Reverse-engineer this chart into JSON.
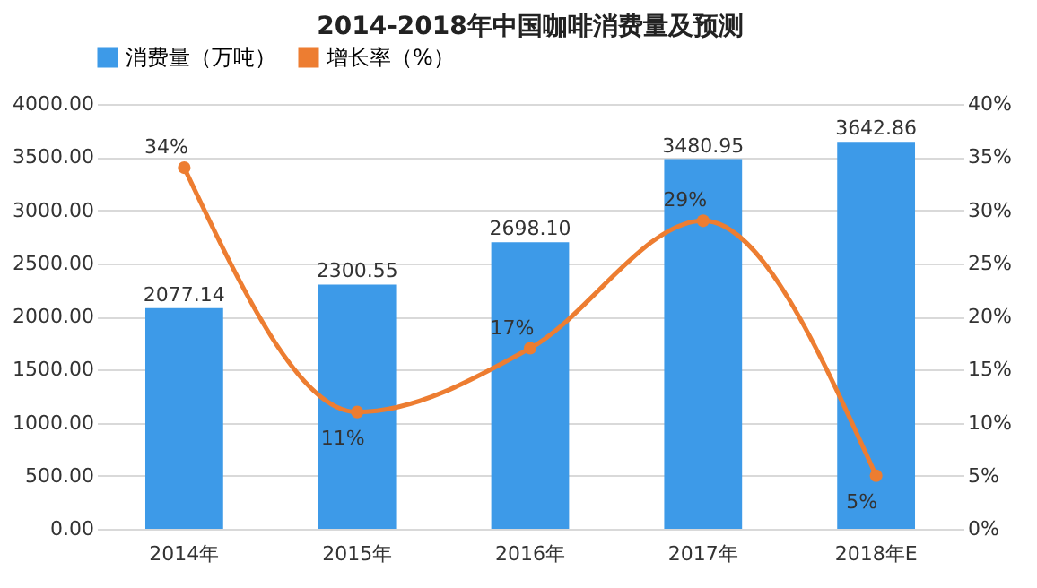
{
  "chart_data": {
    "type": "bar",
    "title": "2014-2018年中国咖啡消费量及预测",
    "categories": [
      "2014年",
      "2015年",
      "2016年",
      "2017年",
      "2018年E"
    ],
    "series": [
      {
        "name": "消费量（万吨）",
        "color": "#3d9ae8",
        "values": [
          2077.14,
          2300.55,
          2698.1,
          3480.95,
          3642.86
        ],
        "value_labels": [
          "2077.14",
          "2300.55",
          "2698.10",
          "3480.95",
          "3642.86"
        ]
      },
      {
        "name": "增长率（%）",
        "type": "line",
        "axis": "y2",
        "color": "#ed7d31",
        "values": [
          34,
          11,
          17,
          29,
          5
        ],
        "value_labels": [
          "34%",
          "11%",
          "17%",
          "29%",
          "5%"
        ]
      }
    ],
    "ylim": [
      0,
      4000
    ],
    "yticks": [
      {
        "value": 0,
        "label": "0.00"
      },
      {
        "value": 500,
        "label": "500.00"
      },
      {
        "value": 1000,
        "label": "1000.00"
      },
      {
        "value": 1500,
        "label": "1500.00"
      },
      {
        "value": 2000,
        "label": "2000.00"
      },
      {
        "value": 2500,
        "label": "2500.00"
      },
      {
        "value": 3000,
        "label": "3000.00"
      },
      {
        "value": 3500,
        "label": "3500.00"
      },
      {
        "value": 4000,
        "label": "4000.00"
      }
    ],
    "y2lim": [
      0,
      40
    ],
    "y2ticks": [
      {
        "value": 0,
        "label": "0%"
      },
      {
        "value": 5,
        "label": "5%"
      },
      {
        "value": 10,
        "label": "10%"
      },
      {
        "value": 15,
        "label": "15%"
      },
      {
        "value": 20,
        "label": "20%"
      },
      {
        "value": 25,
        "label": "25%"
      },
      {
        "value": 30,
        "label": "30%"
      },
      {
        "value": 35,
        "label": "35%"
      },
      {
        "value": 40,
        "label": "40%"
      }
    ],
    "grid": "y",
    "legend": "top",
    "marker": "circle"
  }
}
